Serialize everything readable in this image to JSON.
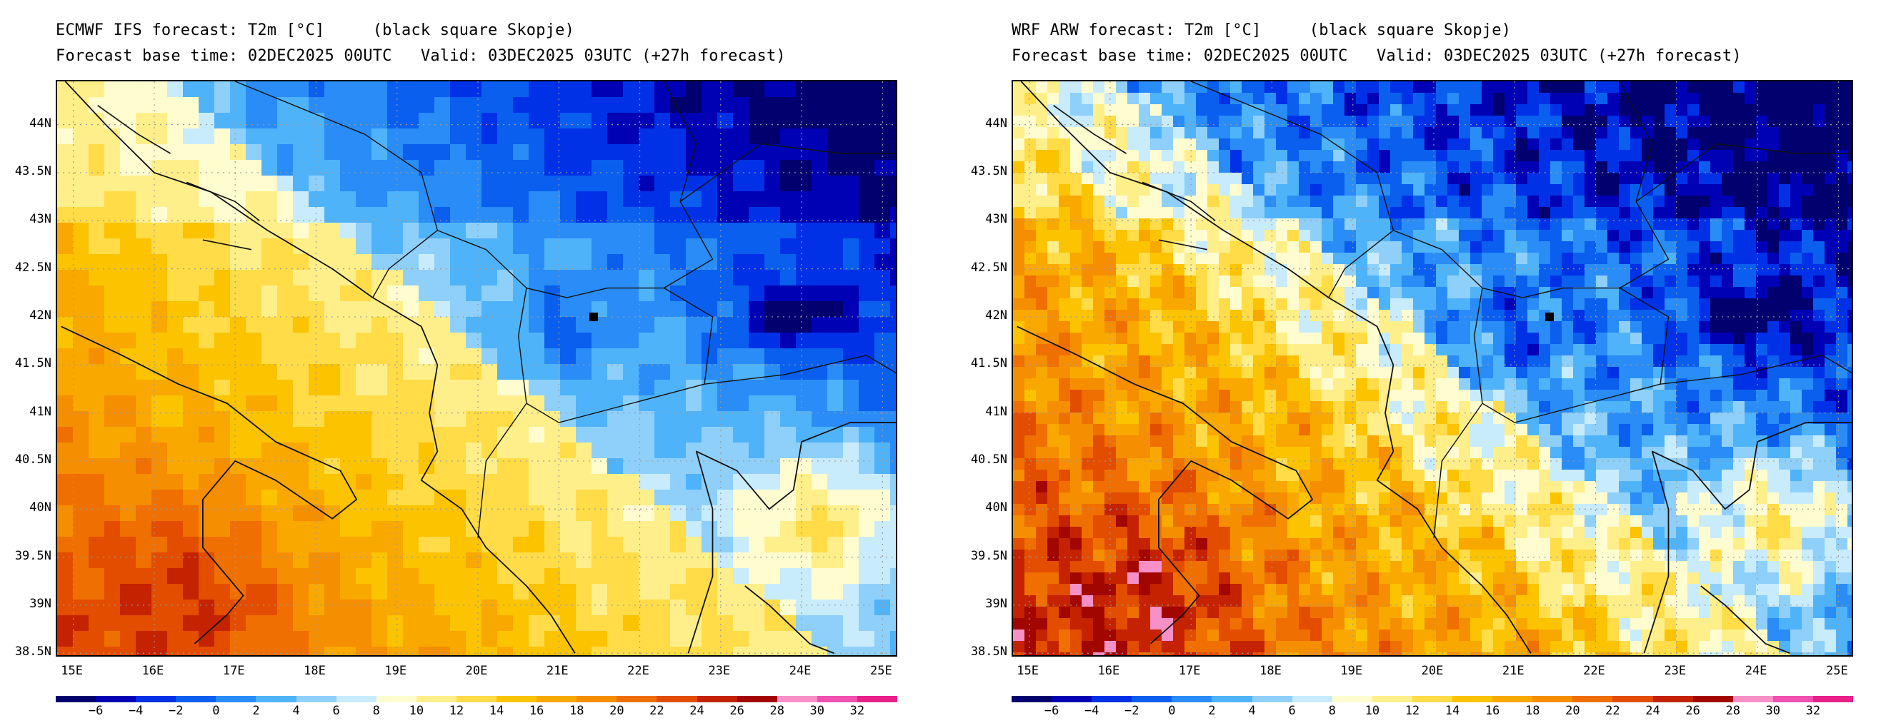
{
  "panels": [
    {
      "title_line1": "ECMWF IFS forecast: T2m [°C]     (black square Skopje)",
      "title_line2": "Forecast base time: 02DEC2025 00UTC   Valid: 03DEC2025 03UTC (+27h forecast)",
      "model": "ecmwf"
    },
    {
      "title_line1": "WRF ARW forecast: T2m [°C]     (black square Skopje)",
      "title_line2": "Forecast base time: 02DEC2025 00UTC   Valid: 03DEC2025 03UTC (+27h forecast)",
      "model": "wrf"
    }
  ],
  "map": {
    "lon_range": [
      14.8,
      25.2
    ],
    "lat_range": [
      38.45,
      44.45
    ],
    "lat_labels": [
      "44N",
      "43.5N",
      "43N",
      "42.5N",
      "42N",
      "41.5N",
      "41N",
      "40.5N",
      "40N",
      "39.5N",
      "39N",
      "38.5N"
    ],
    "lat_values": [
      44,
      43.5,
      43,
      42.5,
      42,
      41.5,
      41,
      40.5,
      40,
      39.5,
      39,
      38.5
    ],
    "lon_labels": [
      "15E",
      "16E",
      "17E",
      "18E",
      "19E",
      "20E",
      "21E",
      "22E",
      "23E",
      "24E",
      "25E"
    ],
    "lon_values": [
      15,
      16,
      17,
      18,
      19,
      20,
      21,
      22,
      23,
      24,
      25
    ],
    "gridlines": "dotted",
    "marker": {
      "name": "Skopje",
      "lon": 21.43,
      "lat": 42.0,
      "shape": "black square"
    }
  },
  "colorbar": {
    "labels": [
      "−6",
      "−4",
      "−2",
      "0",
      "2",
      "4",
      "6",
      "8",
      "10",
      "12",
      "14",
      "16",
      "18",
      "20",
      "22",
      "24",
      "26",
      "28",
      "30",
      "32"
    ],
    "colors": [
      "#02006e",
      "#0000b4",
      "#0031e6",
      "#0a5fee",
      "#2a8cf6",
      "#4fb3fa",
      "#8fd0fa",
      "#c8ecfc",
      "#fffcd0",
      "#ffef8a",
      "#ffdc48",
      "#fbc300",
      "#f9a800",
      "#f58e00",
      "#ef6f00",
      "#e34d00",
      "#c42200",
      "#a20600",
      "#f890c8",
      "#f050b0",
      "#e8208a"
    ]
  }
}
